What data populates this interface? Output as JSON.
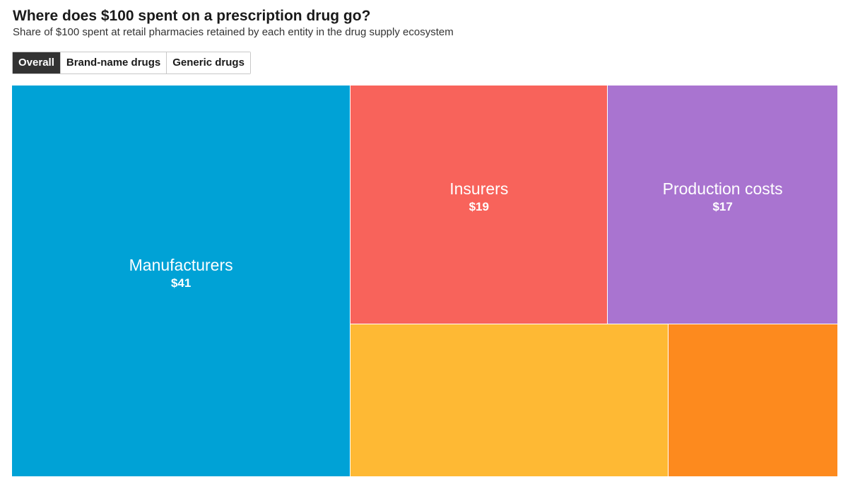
{
  "title": "Where does $100 spent on a prescription drug go?",
  "subtitle": "Share of $100 spent at retail pharmacies retained by each entity in the drug supply ecosystem",
  "tabs": [
    {
      "label": "Overall",
      "active": true
    },
    {
      "label": "Brand-name drugs",
      "active": false
    },
    {
      "label": "Generic drugs",
      "active": false
    }
  ],
  "chart_data": {
    "type": "treemap",
    "total": 100,
    "cells": [
      {
        "name": "Manufacturers",
        "value_label": "$41",
        "value": 41,
        "color": "#00a2d6"
      },
      {
        "name": "Insurers",
        "value_label": "$19",
        "value": 19,
        "color": "#f8635b"
      },
      {
        "name": "Production costs",
        "value_label": "$17",
        "value": 17,
        "color": "#a974d0"
      },
      {
        "name": "",
        "value_label": "",
        "value": 15,
        "color": "#feb934"
      },
      {
        "name": "",
        "value_label": "",
        "value": 8,
        "color": "#fd8a1e"
      }
    ]
  }
}
